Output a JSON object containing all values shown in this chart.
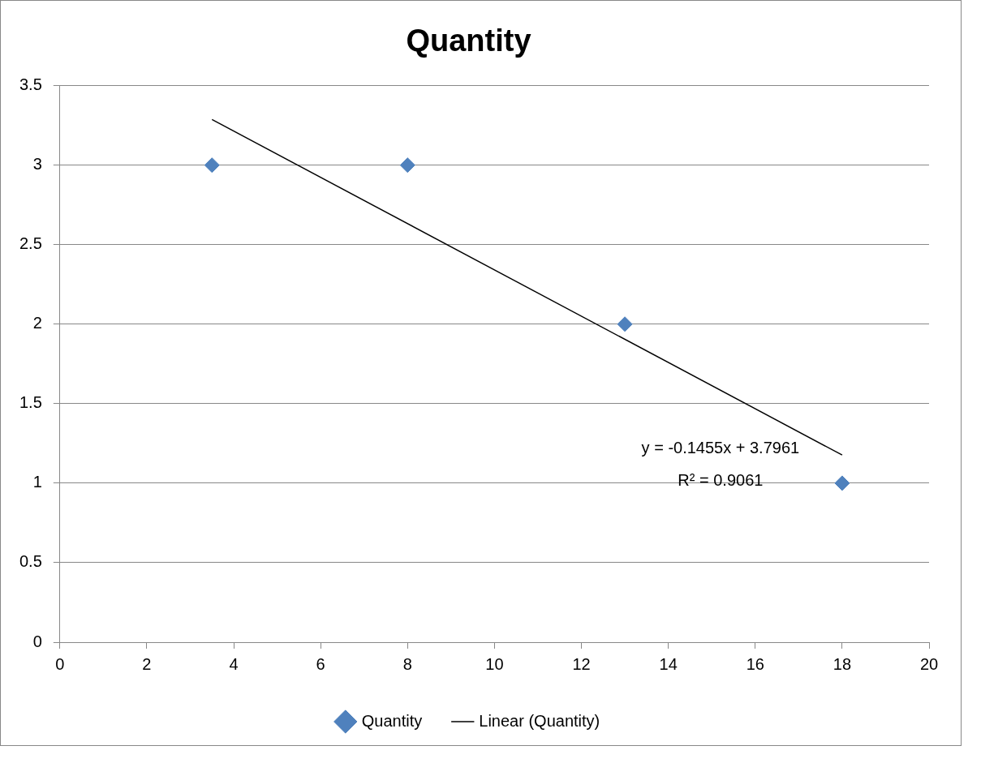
{
  "chart_data": {
    "type": "scatter",
    "title": "Quantity",
    "series": [
      {
        "name": "Quantity",
        "type": "scatter",
        "color": "#4f81bd",
        "x": [
          3.5,
          8,
          13,
          18
        ],
        "values": [
          3,
          3,
          2,
          1
        ],
        "marker": "diamond"
      },
      {
        "name": "Linear (Quantity)",
        "type": "line",
        "color": "#000000",
        "x": [
          3.5,
          18
        ],
        "values": [
          3.287,
          1.177
        ],
        "marker": "none",
        "line_style": "solid"
      }
    ],
    "annotations": [
      "y = -0.1455x + 3.7961",
      "R² = 0.9061"
    ],
    "xlim": [
      0,
      20
    ],
    "xticks": [
      0,
      2,
      4,
      6,
      8,
      10,
      12,
      14,
      16,
      18,
      20
    ],
    "ylim": [
      0,
      3.5
    ],
    "yticks": [
      0,
      0.5,
      1,
      1.5,
      2,
      2.5,
      3,
      3.5
    ],
    "grid": "y",
    "legend": "bottom"
  }
}
